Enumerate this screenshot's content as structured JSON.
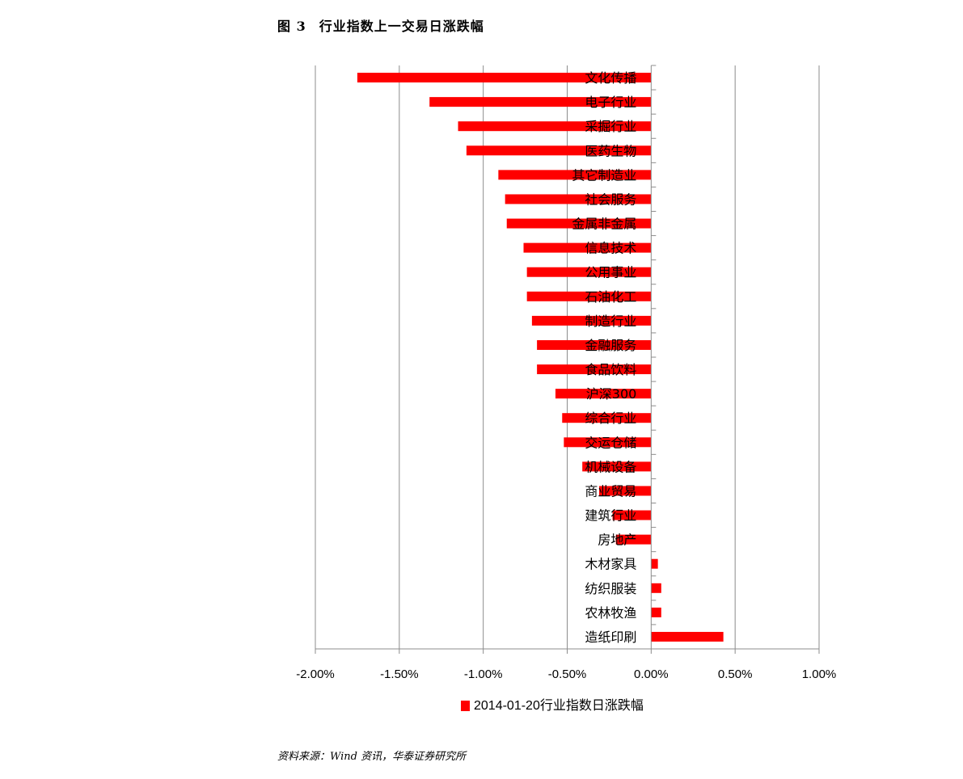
{
  "figure": {
    "label": "图 3",
    "title": "行业指数上一交易日涨跌幅",
    "source": "资料来源：Wind 资讯，华泰证券研究所"
  },
  "chart_data": {
    "type": "bar",
    "orientation": "horizontal",
    "categories": [
      "文化传播",
      "电子行业",
      "采掘行业",
      "医药生物",
      "其它制造业",
      "社会服务",
      "金属非金属",
      "信息技术",
      "公用事业",
      "石油化工",
      "制造行业",
      "金融服务",
      "食品饮料",
      "沪深300",
      "综合行业",
      "交运仓储",
      "机械设备",
      "商业贸易",
      "建筑行业",
      "房地产",
      "木材家具",
      "纺织服装",
      "农林牧渔",
      "造纸印刷"
    ],
    "series": [
      {
        "name": "2014-01-20行业指数日涨跌幅",
        "color": "#ff0000",
        "values": [
          -1.75,
          -1.32,
          -1.15,
          -1.1,
          -0.91,
          -0.87,
          -0.86,
          -0.76,
          -0.74,
          -0.74,
          -0.71,
          -0.68,
          -0.68,
          -0.57,
          -0.53,
          -0.52,
          -0.41,
          -0.31,
          -0.23,
          -0.21,
          0.04,
          0.06,
          0.06,
          0.43
        ]
      }
    ],
    "xlim": [
      -2.0,
      1.0
    ],
    "xticks": [
      "-2.00%",
      "-1.50%",
      "-1.00%",
      "-0.50%",
      "0.00%",
      "0.50%",
      "1.00%"
    ],
    "xtick_values": [
      -2.0,
      -1.5,
      -1.0,
      -0.5,
      0.0,
      0.5,
      1.0
    ],
    "grid": "vertical major gridlines",
    "legend_position": "bottom"
  }
}
